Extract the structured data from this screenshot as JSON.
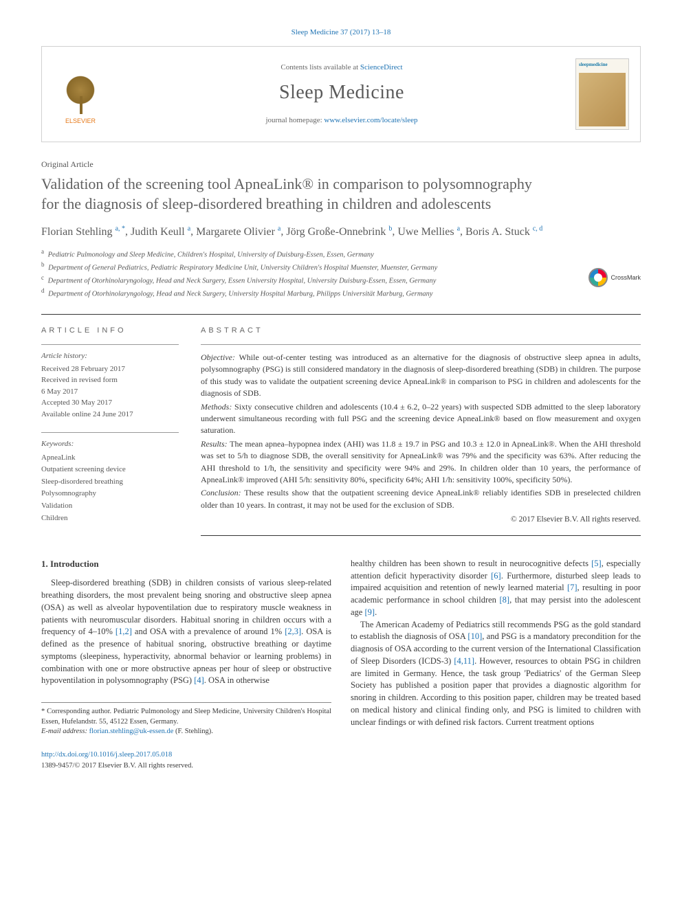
{
  "colors": {
    "link": "#1d72b3",
    "author_sup": "#1d72b3",
    "text": "#3a3a3a",
    "muted": "#666666"
  },
  "journal_ref": {
    "text": "Sleep Medicine 37 (2017) 13–18"
  },
  "header": {
    "contents_prefix": "Contents lists available at ",
    "contents_link": "ScienceDirect",
    "journal_name": "Sleep Medicine",
    "homepage_prefix": "journal homepage: ",
    "homepage_url": "www.elsevier.com/locate/sleep",
    "elsevier_label": "ELSEVIER",
    "cover_title": "sleepmedicine"
  },
  "crossmark_label": "CrossMark",
  "article": {
    "type": "Original Article",
    "title": "Validation of the screening tool ApneaLink® in comparison to polysomnography for the diagnosis of sleep-disordered breathing in children and adolescents",
    "authors_html": [
      {
        "name": "Florian Stehling",
        "sup": "a, *"
      },
      {
        "name": "Judith Keull",
        "sup": "a"
      },
      {
        "name": "Margarete Olivier",
        "sup": "a"
      },
      {
        "name": "Jörg Große-Onnebrink",
        "sup": "b"
      },
      {
        "name": "Uwe Mellies",
        "sup": "a"
      },
      {
        "name": "Boris A. Stuck",
        "sup": "c, d"
      }
    ],
    "affiliations": [
      {
        "key": "a",
        "text": "Pediatric Pulmonology and Sleep Medicine, Children's Hospital, University of Duisburg-Essen, Essen, Germany"
      },
      {
        "key": "b",
        "text": "Department of General Pediatrics, Pediatric Respiratory Medicine Unit, University Children's Hospital Muenster, Muenster, Germany"
      },
      {
        "key": "c",
        "text": "Department of Otorhinolaryngology, Head and Neck Surgery, Essen University Hospital, University Duisburg-Essen, Essen, Germany"
      },
      {
        "key": "d",
        "text": "Department of Otorhinolaryngology, Head and Neck Surgery, University Hospital Marburg, Philipps Universität Marburg, Germany"
      }
    ]
  },
  "info": {
    "label": "ARTICLE INFO",
    "history_head": "Article history:",
    "history_lines": [
      "Received 28 February 2017",
      "Received in revised form",
      "6 May 2017",
      "Accepted 30 May 2017",
      "Available online 24 June 2017"
    ],
    "keywords_head": "Keywords:",
    "keywords": [
      "ApneaLink",
      "Outpatient screening device",
      "Sleep-disordered breathing",
      "Polysomnography",
      "Validation",
      "Children"
    ]
  },
  "abstract": {
    "label": "ABSTRACT",
    "sections": [
      {
        "head": "Objective:",
        "body": "While out-of-center testing was introduced as an alternative for the diagnosis of obstructive sleep apnea in adults, polysomnography (PSG) is still considered mandatory in the diagnosis of sleep-disordered breathing (SDB) in children. The purpose of this study was to validate the outpatient screening device ApneaLink® in comparison to PSG in children and adolescents for the diagnosis of SDB."
      },
      {
        "head": "Methods:",
        "body": "Sixty consecutive children and adolescents (10.4 ± 6.2, 0–22 years) with suspected SDB admitted to the sleep laboratory underwent simultaneous recording with full PSG and the screening device ApneaLink® based on flow measurement and oxygen saturation."
      },
      {
        "head": "Results:",
        "body": "The mean apnea–hypopnea index (AHI) was 11.8 ± 19.7 in PSG and 10.3 ± 12.0 in ApneaLink®. When the AHI threshold was set to 5/h to diagnose SDB, the overall sensitivity for ApneaLink® was 79% and the specificity was 63%. After reducing the AHI threshold to 1/h, the sensitivity and specificity were 94% and 29%. In children older than 10 years, the performance of ApneaLink® improved (AHI 5/h: sensitivity 80%, specificity 64%; AHI 1/h: sensitivity 100%, specificity 50%)."
      },
      {
        "head": "Conclusion:",
        "body": "These results show that the outpatient screening device ApneaLink® reliably identifies SDB in preselected children older than 10 years. In contrast, it may not be used for the exclusion of SDB."
      }
    ],
    "copyright": "© 2017 Elsevier B.V. All rights reserved."
  },
  "body": {
    "intro_heading": "1. Introduction",
    "col1_para": "Sleep-disordered breathing (SDB) in children consists of various sleep-related breathing disorders, the most prevalent being snoring and obstructive sleep apnea (OSA) as well as alveolar hypoventilation due to respiratory muscle weakness in patients with neuromuscular disorders. Habitual snoring in children occurs with a frequency of 4–10% ",
    "col1_ref1": "[1,2]",
    "col1_mid1": " and OSA with a prevalence of around 1% ",
    "col1_ref2": "[2,3]",
    "col1_mid2": ". OSA is defined as the presence of habitual snoring, obstructive breathing or daytime symptoms (sleepiness, hyperactivity, abnormal behavior or learning problems) in combination with one or more obstructive apneas per hour of sleep or obstructive hypoventilation in polysomnography (PSG) ",
    "col1_ref3": "[4]",
    "col1_end": ". OSA in otherwise",
    "col2_p1_a": "healthy children has been shown to result in neurocognitive defects ",
    "col2_r5": "[5]",
    "col2_p1_b": ", especially attention deficit hyperactivity disorder ",
    "col2_r6": "[6]",
    "col2_p1_c": ". Furthermore, disturbed sleep leads to impaired acquisition and retention of newly learned material ",
    "col2_r7": "[7]",
    "col2_p1_d": ", resulting in poor academic performance in school children ",
    "col2_r8": "[8]",
    "col2_p1_e": ", that may persist into the adolescent age ",
    "col2_r9": "[9]",
    "col2_p1_f": ".",
    "col2_p2_a": "The American Academy of Pediatrics still recommends PSG as the gold standard to establish the diagnosis of OSA ",
    "col2_r10": "[10]",
    "col2_p2_b": ", and PSG is a mandatory precondition for the diagnosis of OSA according to the current version of the International Classification of Sleep Disorders (ICDS-3) ",
    "col2_r411": "[4,11]",
    "col2_p2_c": ". However, resources to obtain PSG in children are limited in Germany. Hence, the task group 'Pediatrics' of the German Sleep Society has published a position paper that provides a diagnostic algorithm for snoring in children. According to this position paper, children may be treated based on medical history and clinical finding only, and PSG is limited to children with unclear findings or with defined risk factors. Current treatment options"
  },
  "corr": {
    "star": "*",
    "text": "Corresponding author. Pediatric Pulmonology and Sleep Medicine, University Children's Hospital Essen, Hufelandstr. 55, 45122 Essen, Germany.",
    "email_label": "E-mail address:",
    "email": "florian.stehling@uk-essen.de",
    "email_suffix": "(F. Stehling)."
  },
  "footer": {
    "doi": "http://dx.doi.org/10.1016/j.sleep.2017.05.018",
    "issn_line": "1389-9457/© 2017 Elsevier B.V. All rights reserved."
  }
}
